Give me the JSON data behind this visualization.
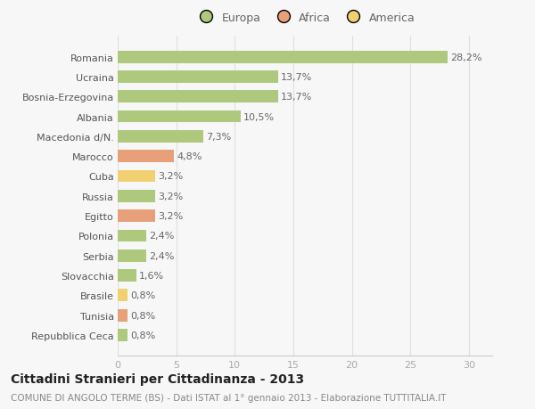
{
  "categories": [
    "Repubblica Ceca",
    "Tunisia",
    "Brasile",
    "Slovacchia",
    "Serbia",
    "Polonia",
    "Egitto",
    "Russia",
    "Cuba",
    "Marocco",
    "Macedonia d/N.",
    "Albania",
    "Bosnia-Erzegovina",
    "Ucraina",
    "Romania"
  ],
  "values": [
    0.8,
    0.8,
    0.8,
    1.6,
    2.4,
    2.4,
    3.2,
    3.2,
    3.2,
    4.8,
    7.3,
    10.5,
    13.7,
    13.7,
    28.2
  ],
  "continents": [
    "Europa",
    "Africa",
    "America",
    "Europa",
    "Europa",
    "Europa",
    "Africa",
    "Europa",
    "America",
    "Africa",
    "Europa",
    "Europa",
    "Europa",
    "Europa",
    "Europa"
  ],
  "labels": [
    "0,8%",
    "0,8%",
    "0,8%",
    "1,6%",
    "2,4%",
    "2,4%",
    "3,2%",
    "3,2%",
    "3,2%",
    "4,8%",
    "7,3%",
    "10,5%",
    "13,7%",
    "13,7%",
    "28,2%"
  ],
  "colors": {
    "Europa": "#aec97d",
    "Africa": "#e8a07a",
    "America": "#f0d070"
  },
  "bg_color": "#f7f7f7",
  "grid_color": "#e0e0e0",
  "title": "Cittadini Stranieri per Cittadinanza - 2013",
  "subtitle": "COMUNE DI ANGOLO TERME (BS) - Dati ISTAT al 1° gennaio 2013 - Elaborazione TUTTITALIA.IT",
  "xlim": [
    0,
    32
  ],
  "xticks": [
    0,
    5,
    10,
    15,
    20,
    25,
    30
  ],
  "title_fontsize": 10,
  "subtitle_fontsize": 7.5,
  "label_fontsize": 8,
  "tick_fontsize": 8,
  "ytick_fontsize": 8,
  "bar_height": 0.62
}
